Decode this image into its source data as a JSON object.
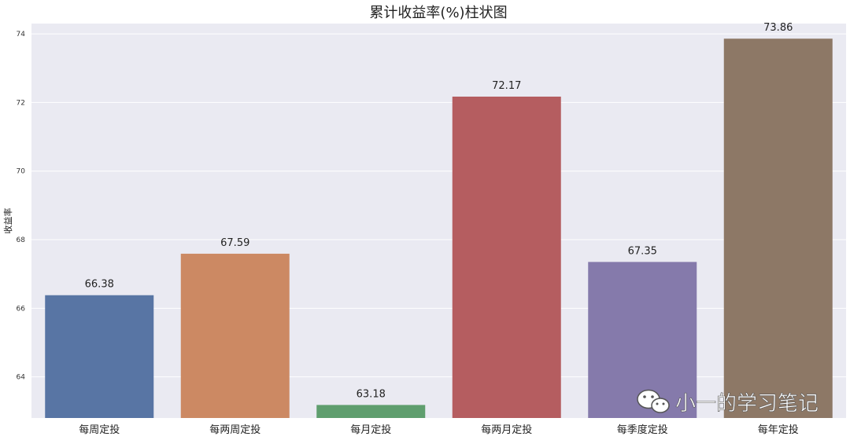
{
  "chart_data": {
    "type": "bar",
    "title": "累计收益率(%)柱状图",
    "xlabel": "",
    "ylabel": "收益率",
    "categories": [
      "每周定投",
      "每两周定投",
      "每月定投",
      "每两月定投",
      "每季度定投",
      "每年定投"
    ],
    "values": [
      66.38,
      67.59,
      63.18,
      72.17,
      67.35,
      73.86
    ],
    "data_labels": [
      "66.38",
      "67.59",
      "63.18",
      "72.17",
      "67.35",
      "73.86"
    ],
    "colors": [
      "#5875a4",
      "#cc8963",
      "#5f9e6e",
      "#b55d60",
      "#857aab",
      "#8d7866"
    ],
    "ylim": [
      62.8,
      74.3
    ],
    "yticks": [
      64,
      66,
      68,
      70,
      72,
      74
    ],
    "grid": true,
    "background_color": "#eaeaf2"
  },
  "watermark": {
    "text": "小一的学习笔记",
    "icon": "wechat-icon"
  }
}
